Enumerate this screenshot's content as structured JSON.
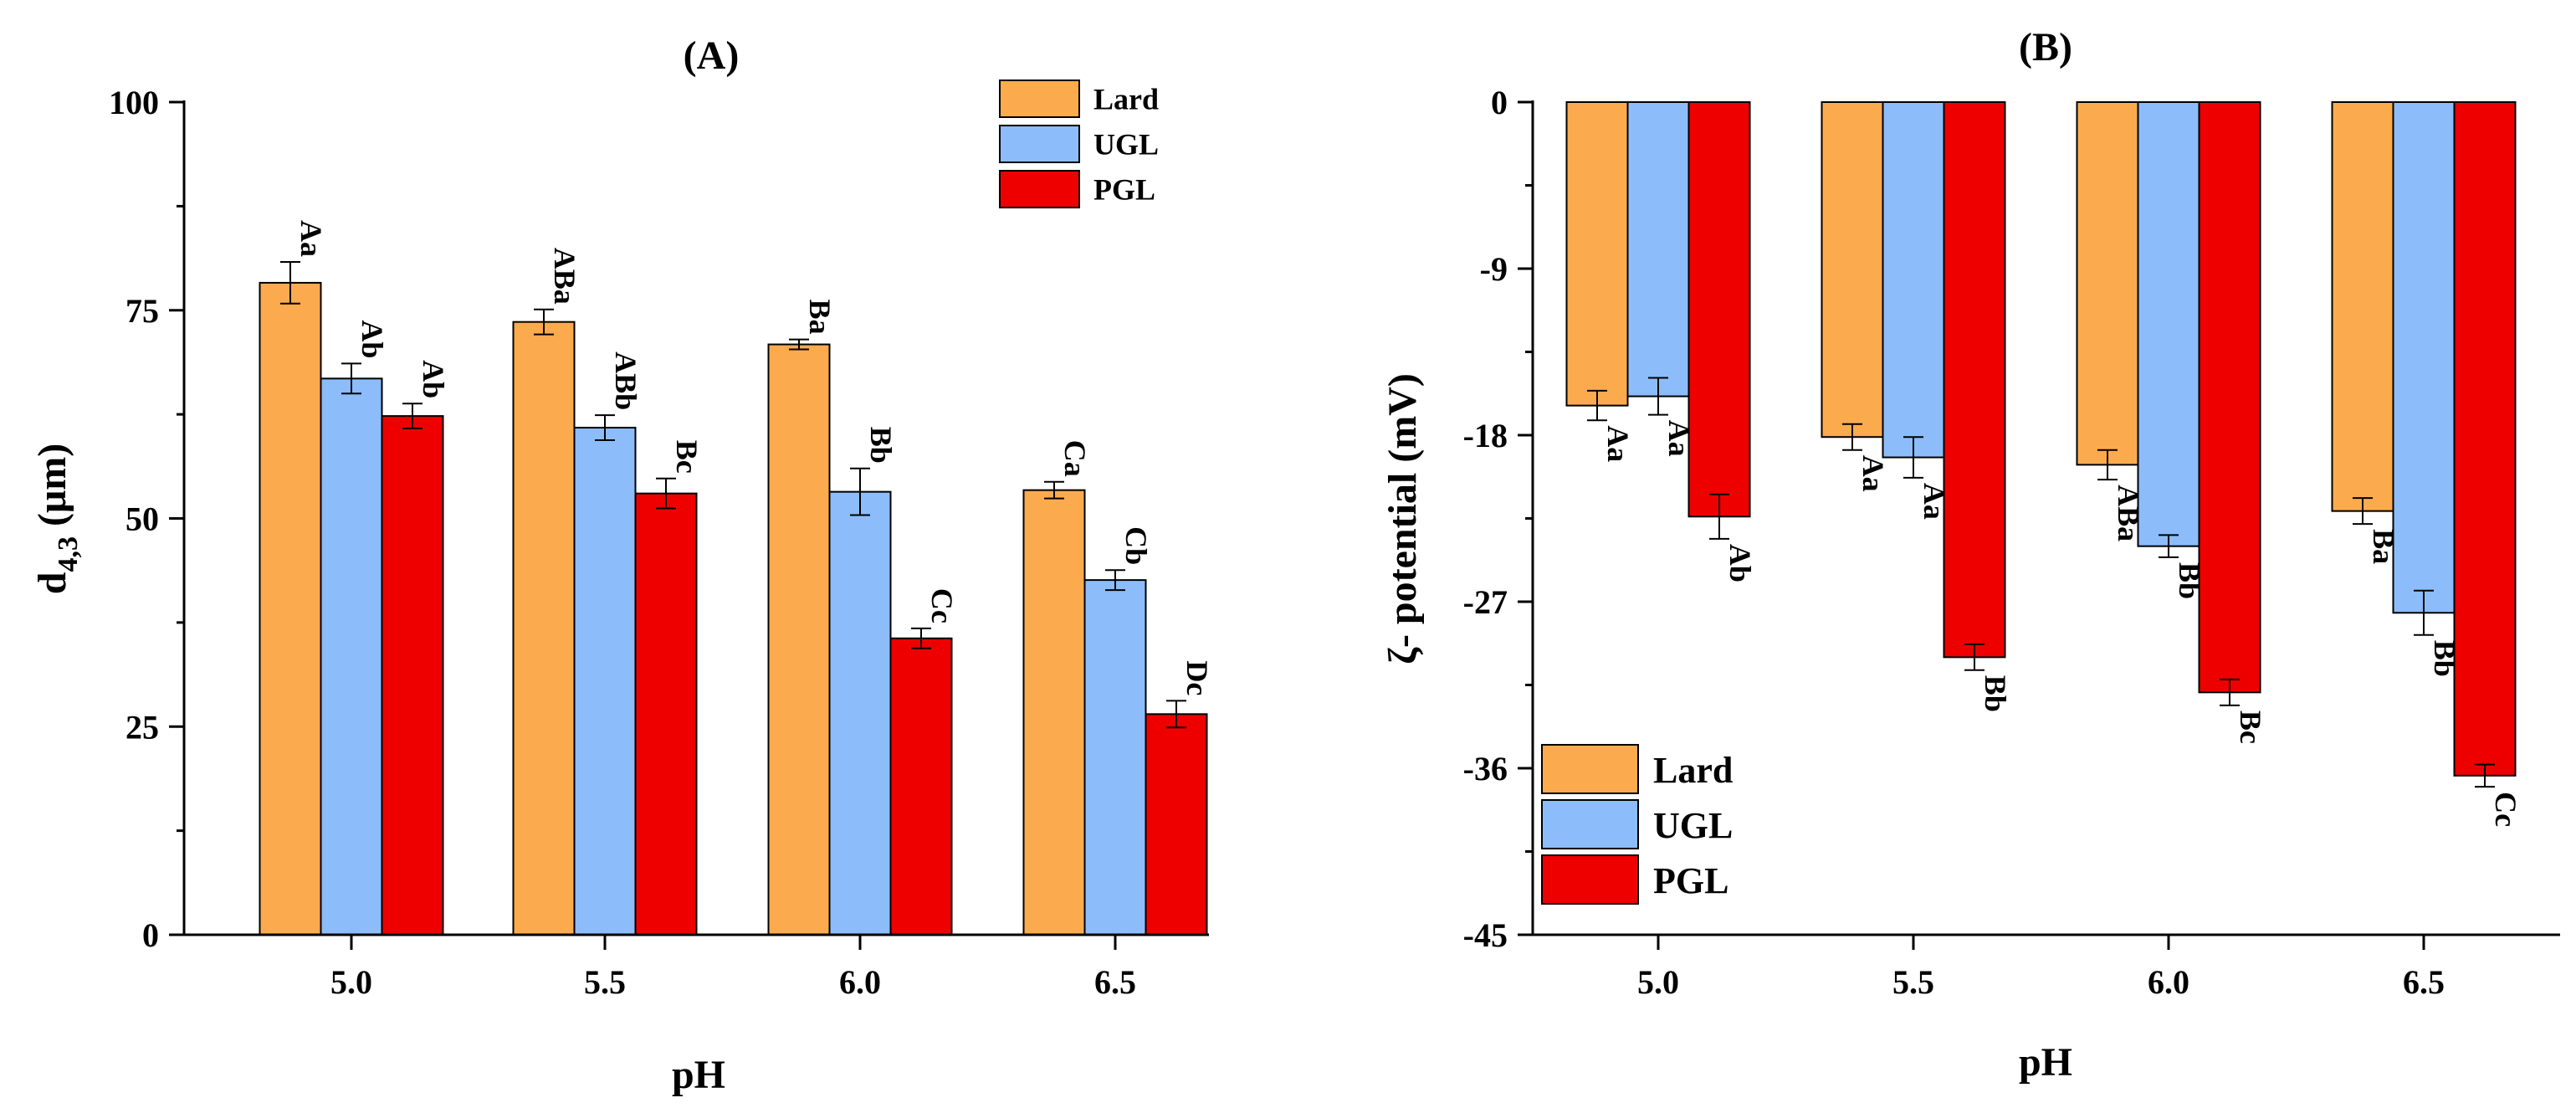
{
  "chart_data": [
    {
      "panel": "(A)",
      "type": "bar",
      "title": "(A)",
      "xlabel": "pH",
      "ylabel": "d4,3 (μm)",
      "ylabel_main": "d",
      "ylabel_sub": "4,3",
      "ylabel_rest": " (μm)",
      "categories": [
        "5.0",
        "5.5",
        "6.0",
        "6.5"
      ],
      "ylim": [
        0,
        100
      ],
      "yticks": [
        "0",
        "25",
        "50",
        "75",
        "100"
      ],
      "ytick_values": [
        0,
        25,
        50,
        75,
        100
      ],
      "legend_position": "top-right",
      "series": [
        {
          "name": "Lard",
          "color": "#FBAB4E",
          "values": [
            78.3,
            73.6,
            70.9,
            53.4
          ],
          "errors": [
            2.5,
            1.5,
            0.6,
            1.0
          ],
          "labels": [
            "Aa",
            "ABa",
            "Ba",
            "Ca"
          ]
        },
        {
          "name": "UGL",
          "color": "#8CBDFA",
          "values": [
            66.8,
            60.9,
            53.2,
            42.6
          ],
          "errors": [
            1.8,
            1.5,
            2.8,
            1.2
          ],
          "labels": [
            "Ab",
            "ABb",
            "Bb",
            "Cb"
          ]
        },
        {
          "name": "PGL",
          "color": "#EE0000",
          "values": [
            62.3,
            53.0,
            35.6,
            26.5
          ],
          "errors": [
            1.5,
            1.8,
            1.2,
            1.6
          ],
          "labels": [
            "Ab",
            "Bc",
            "Cc",
            "Dc"
          ]
        }
      ]
    },
    {
      "panel": "(B)",
      "type": "bar",
      "title": "(B)",
      "xlabel": "pH",
      "ylabel": "ζ- potential (mV)",
      "categories": [
        "5.0",
        "5.5",
        "6.0",
        "6.5"
      ],
      "ylim": [
        -45,
        0
      ],
      "yticks": [
        "0",
        "-9",
        "-18",
        "-27",
        "-36",
        "-45"
      ],
      "ytick_values": [
        0,
        -9,
        -18,
        -27,
        -36,
        -45
      ],
      "legend_position": "bottom-left",
      "series": [
        {
          "name": "Lard",
          "color": "#FBAB4E",
          "values": [
            -16.4,
            -18.1,
            -19.6,
            -22.1
          ],
          "errors": [
            0.8,
            0.7,
            0.8,
            0.7
          ],
          "labels": [
            "Aa",
            "Aa",
            "ABa",
            "Ba"
          ]
        },
        {
          "name": "UGL",
          "color": "#8CBDFA",
          "values": [
            -15.9,
            -19.2,
            -24.0,
            -27.6
          ],
          "errors": [
            1.0,
            1.1,
            0.6,
            1.2
          ],
          "labels": [
            "Aa",
            "Aa",
            "Bb",
            "Bb"
          ]
        },
        {
          "name": "PGL",
          "color": "#EE0000",
          "values": [
            -22.4,
            -30.0,
            -31.9,
            -36.4
          ],
          "errors": [
            1.2,
            0.7,
            0.7,
            0.6
          ],
          "labels": [
            "Ab",
            "Bb",
            "Bc",
            "Cc"
          ]
        }
      ]
    }
  ]
}
